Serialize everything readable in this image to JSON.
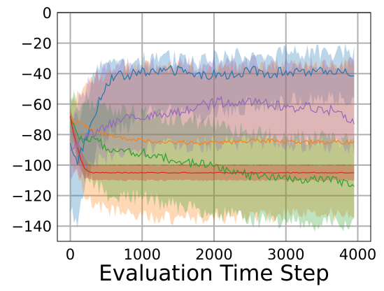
{
  "chart_data": {
    "type": "line",
    "title": "",
    "xlabel": "Evaluation Time Step",
    "ylabel": "",
    "xlim": [
      -180,
      4180
    ],
    "ylim": [
      -150,
      0
    ],
    "xticks": [
      0,
      1000,
      2000,
      3000,
      4000
    ],
    "xtick_labels": [
      "0",
      "1000",
      "2000",
      "3000",
      "4000"
    ],
    "yticks": [
      0,
      -20,
      -40,
      -60,
      -80,
      -100,
      -120,
      -140
    ],
    "ytick_labels": [
      "0",
      "−20",
      "−40",
      "−60",
      "−80",
      "−100",
      "−120",
      "−140"
    ],
    "grid": true,
    "legend": "none",
    "series": [
      {
        "color": "#1f77b4",
        "x": [
          0,
          100,
          200,
          300,
          400,
          500,
          600,
          800,
          1000,
          1200,
          1500,
          1800,
          2000,
          2200,
          2500,
          2800,
          3000,
          3200,
          3500,
          3800,
          3950
        ],
        "mean": [
          -87,
          -97,
          -85,
          -72,
          -58,
          -47,
          -42,
          -41,
          -39,
          -38,
          -38,
          -42,
          -40,
          -42,
          -38,
          -40,
          -38,
          -40,
          -39,
          -38,
          -40
        ],
        "lower": [
          -128,
          -140,
          -115,
          -100,
          -88,
          -80,
          -76,
          -74,
          -68,
          -66,
          -65,
          -68,
          -65,
          -64,
          -60,
          -60,
          -58,
          -58,
          -56,
          -56,
          -58
        ],
        "upper": [
          -65,
          -70,
          -60,
          -45,
          -38,
          -34,
          -32,
          -33,
          -31,
          -30,
          -30,
          -32,
          -30,
          -30,
          -27,
          -28,
          -27,
          -27,
          -27,
          -25,
          -26
        ]
      },
      {
        "color": "#ff7f0e",
        "x": [
          0,
          100,
          200,
          300,
          500,
          700,
          1000,
          1300,
          1600,
          1900,
          2200,
          2500,
          2800,
          3100,
          3400,
          3700,
          3950
        ],
        "mean": [
          -70,
          -72,
          -74,
          -77,
          -80,
          -82,
          -84,
          -85,
          -85,
          -86,
          -85,
          -84,
          -84,
          -85,
          -85,
          -85,
          -85
        ],
        "lower": [
          -95,
          -108,
          -120,
          -125,
          -128,
          -132,
          -134,
          -135,
          -135,
          -135,
          -134,
          -134,
          -133,
          -133,
          -133,
          -132,
          -132
        ],
        "upper": [
          -60,
          -55,
          -50,
          -45,
          -40,
          -38,
          -36,
          -36,
          -36,
          -38,
          -36,
          -35,
          -35,
          -35,
          -35,
          -34,
          -34
        ]
      },
      {
        "color": "#2ca02c",
        "x": [
          0,
          100,
          200,
          300,
          500,
          700,
          1000,
          1300,
          1600,
          1900,
          2200,
          2500,
          2800,
          3100,
          3400,
          3700,
          3950
        ],
        "mean": [
          -70,
          -80,
          -85,
          -83,
          -88,
          -90,
          -92,
          -95,
          -98,
          -100,
          -103,
          -107,
          -108,
          -110,
          -109,
          -110,
          -112
        ],
        "lower": [
          -80,
          -95,
          -108,
          -112,
          -118,
          -120,
          -122,
          -125,
          -128,
          -130,
          -132,
          -135,
          -137,
          -138,
          -138,
          -137,
          -140
        ],
        "upper": [
          -56,
          -58,
          -62,
          -62,
          -62,
          -64,
          -66,
          -68,
          -70,
          -72,
          -75,
          -78,
          -80,
          -82,
          -82,
          -83,
          -84
        ]
      },
      {
        "color": "#d62728",
        "x": [
          0,
          50,
          100,
          150,
          200,
          250,
          300,
          400,
          600,
          1000,
          1500,
          2000,
          2500,
          3000,
          3500,
          3950
        ],
        "mean": [
          -68,
          -80,
          -88,
          -97,
          -102,
          -104,
          -105,
          -105,
          -105,
          -105,
          -105,
          -105,
          -105,
          -105,
          -105,
          -105
        ],
        "lower": [
          -72,
          -86,
          -96,
          -104,
          -108,
          -109,
          -110,
          -110,
          -110,
          -110,
          -110,
          -110,
          -110,
          -110,
          -110,
          -110
        ],
        "upper": [
          -64,
          -72,
          -82,
          -90,
          -96,
          -99,
          -100,
          -100,
          -100,
          -100,
          -100,
          -100,
          -100,
          -100,
          -100,
          -100
        ]
      },
      {
        "color": "#9467bd",
        "x": [
          0,
          100,
          200,
          300,
          500,
          700,
          1000,
          1300,
          1600,
          1900,
          2200,
          2500,
          2800,
          3100,
          3400,
          3700,
          3950
        ],
        "mean": [
          -93,
          -85,
          -82,
          -80,
          -75,
          -70,
          -68,
          -66,
          -64,
          -60,
          -58,
          -58,
          -60,
          -62,
          -62,
          -65,
          -70
        ],
        "lower": [
          -108,
          -105,
          -100,
          -98,
          -95,
          -92,
          -90,
          -88,
          -86,
          -86,
          -85,
          -84,
          -85,
          -86,
          -86,
          -88,
          -90
        ],
        "upper": [
          -75,
          -60,
          -50,
          -42,
          -38,
          -36,
          -35,
          -35,
          -34,
          -34,
          -34,
          -33,
          -34,
          -35,
          -34,
          -34,
          -35
        ]
      }
    ]
  }
}
